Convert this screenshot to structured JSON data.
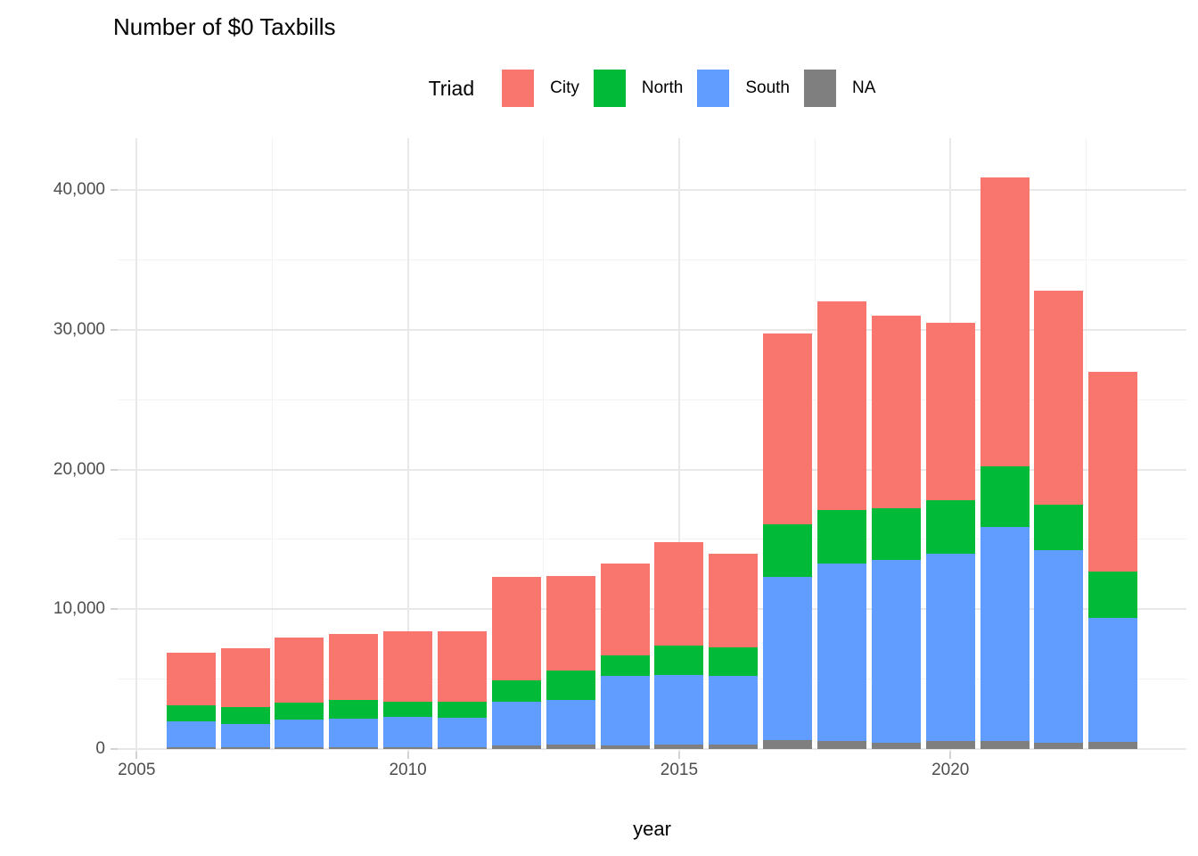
{
  "title": "Number of $0 Taxbills",
  "legend": {
    "title": "Triad",
    "items": [
      {
        "label": "City",
        "color": "#F8766D"
      },
      {
        "label": "North",
        "color": "#00BA38"
      },
      {
        "label": "South",
        "color": "#619CFF"
      },
      {
        "label": "NA",
        "color": "#7F7F7F"
      }
    ]
  },
  "axes": {
    "xlabel": "year",
    "ylabel": ""
  },
  "chart_data": {
    "type": "bar",
    "stacked": true,
    "title": "Number of $0 Taxbills",
    "xlabel": "year",
    "ylabel": "",
    "legend_title": "Triad",
    "legend_position": "top",
    "grid": true,
    "x": [
      2006,
      2007,
      2008,
      2009,
      2010,
      2011,
      2012,
      2013,
      2014,
      2015,
      2016,
      2017,
      2018,
      2019,
      2020,
      2021,
      2022,
      2023
    ],
    "stack_order_bottom_to_top": [
      "NA",
      "South",
      "North",
      "City"
    ],
    "series": [
      {
        "name": "City",
        "color": "#F8766D",
        "values": [
          3800,
          4200,
          4700,
          4700,
          5000,
          5000,
          7400,
          6800,
          6600,
          7400,
          6700,
          13600,
          14900,
          13800,
          12700,
          20700,
          15300,
          14300
        ]
      },
      {
        "name": "North",
        "color": "#00BA38",
        "values": [
          1100,
          1200,
          1200,
          1300,
          1100,
          1150,
          1500,
          2100,
          1500,
          2100,
          2100,
          3800,
          3800,
          3700,
          3800,
          4300,
          3300,
          3300
        ]
      },
      {
        "name": "South",
        "color": "#619CFF",
        "values": [
          1850,
          1650,
          1950,
          2050,
          2150,
          2100,
          3150,
          3150,
          4950,
          5000,
          4900,
          11650,
          12700,
          13050,
          13450,
          15350,
          13750,
          8900
        ]
      },
      {
        "name": "NA",
        "color": "#7F7F7F",
        "values": [
          150,
          150,
          150,
          150,
          150,
          150,
          250,
          350,
          250,
          300,
          300,
          650,
          600,
          450,
          550,
          550,
          450,
          500
        ]
      }
    ],
    "totals": [
      6900,
      7200,
      8000,
      8200,
      8400,
      8400,
      12300,
      12400,
      13300,
      14800,
      14000,
      29700,
      32000,
      31000,
      30500,
      40900,
      32800,
      27000
    ],
    "xlim": [
      2004.65,
      2024.35
    ],
    "ylim": [
      0,
      43700
    ],
    "y_ticks": [
      {
        "value": 0,
        "label": "0"
      },
      {
        "value": 10000,
        "label": "10,000"
      },
      {
        "value": 20000,
        "label": "20,000"
      },
      {
        "value": 30000,
        "label": "30,000"
      },
      {
        "value": 40000,
        "label": "40,000"
      }
    ],
    "y_minor": [
      5000,
      15000,
      25000,
      35000
    ],
    "x_ticks": [
      {
        "value": 2005,
        "label": "2005"
      },
      {
        "value": 2010,
        "label": "2010"
      },
      {
        "value": 2015,
        "label": "2015"
      },
      {
        "value": 2020,
        "label": "2020"
      }
    ],
    "x_minor": [
      2007.5,
      2012.5,
      2017.5,
      2022.5
    ]
  }
}
